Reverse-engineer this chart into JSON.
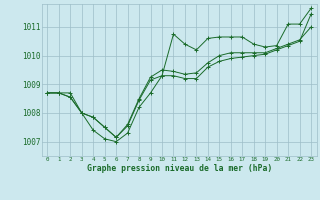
{
  "title": "Graphe pression niveau de la mer (hPa)",
  "bg_color": "#cce8ee",
  "grid_color": "#9dbec8",
  "line_color": "#1a6b2a",
  "marker_color": "#1a6b2a",
  "xlim": [
    -0.5,
    23.5
  ],
  "ylim": [
    1006.5,
    1011.8
  ],
  "xticks": [
    0,
    1,
    2,
    3,
    4,
    5,
    6,
    7,
    8,
    9,
    10,
    11,
    12,
    13,
    14,
    15,
    16,
    17,
    18,
    19,
    20,
    21,
    22,
    23
  ],
  "yticks": [
    1007,
    1008,
    1009,
    1010,
    1011
  ],
  "series": [
    [
      1008.7,
      1008.7,
      1008.7,
      1008.0,
      1007.4,
      1007.1,
      1007.0,
      1007.3,
      1008.2,
      1008.7,
      1009.3,
      1010.75,
      1010.4,
      1010.2,
      1010.6,
      1010.65,
      1010.65,
      1010.65,
      1010.4,
      1010.3,
      1010.35,
      1011.1,
      1011.1,
      1011.65
    ],
    [
      1008.7,
      1008.7,
      1008.55,
      1008.0,
      1007.85,
      1007.5,
      1007.15,
      1007.6,
      1008.5,
      1009.25,
      1009.5,
      1009.45,
      1009.35,
      1009.4,
      1009.75,
      1010.0,
      1010.1,
      1010.1,
      1010.1,
      1010.1,
      1010.25,
      1010.4,
      1010.55,
      1011.0
    ],
    [
      1008.7,
      1008.7,
      1008.55,
      1008.0,
      1007.85,
      1007.5,
      1007.15,
      1007.55,
      1008.45,
      1009.15,
      1009.3,
      1009.3,
      1009.2,
      1009.2,
      1009.6,
      1009.8,
      1009.9,
      1009.95,
      1010.0,
      1010.05,
      1010.2,
      1010.35,
      1010.5,
      1011.45
    ]
  ],
  "figwidth": 3.2,
  "figheight": 2.0,
  "dpi": 100
}
